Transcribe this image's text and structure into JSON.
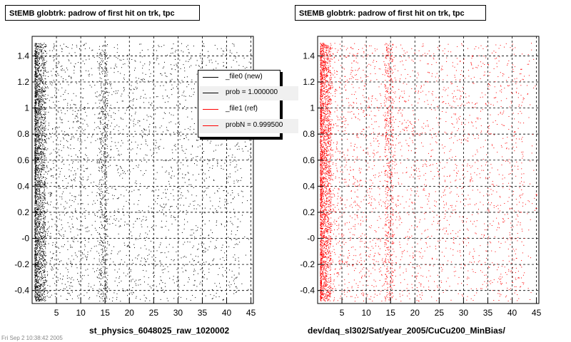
{
  "chart_data": [
    {
      "type": "scatter",
      "title": "StEMB globtrk: padrow of first hit on trk, tpc",
      "xlabel": "st_physics_6048025_raw_1020002",
      "ylabel": "",
      "xlim": [
        0,
        45.5
      ],
      "ylim": [
        -0.5,
        1.55
      ],
      "x_ticks": [
        "5",
        "10",
        "15",
        "20",
        "25",
        "30",
        "35",
        "40",
        "45"
      ],
      "y_ticks": [
        "-0.4",
        "-0.2",
        "-0",
        "0.2",
        "0.4",
        "0.6",
        "0.8",
        "1",
        "1.2",
        "1.4"
      ],
      "grid": true,
      "color": "#000000",
      "series": [
        {
          "points_desc": "",
          "x_range": [
            0.5,
            45
          ],
          "y_range": [
            -0.5,
            1.5
          ],
          "dense_x": [
            [
              0.5,
              2.5
            ],
            [
              13.5,
              15.5
            ]
          ]
        }
      ],
      "legend": {
        "placement": "top-right",
        "entries": [
          {
            "label": "_file0 (new)",
            "color": "#000000"
          },
          {
            "label": "prob = 1.000000",
            "color": "#000000"
          },
          {
            "label": "_file1 (ref)",
            "color": "#ff0000"
          },
          {
            "label": "probN = 0.999500",
            "color": "#ff0000"
          }
        ]
      }
    },
    {
      "type": "scatter",
      "title": "StEMB globtrk: padrow of first hit on trk, tpc",
      "xlabel": "dev/daq_sl302/Sat/year_2005/CuCu200_MinBias/",
      "ylabel": "",
      "xlim": [
        0,
        45.5
      ],
      "ylim": [
        -0.5,
        1.55
      ],
      "x_ticks": [
        "5",
        "10",
        "15",
        "20",
        "25",
        "30",
        "35",
        "40",
        "45"
      ],
      "y_ticks": [
        "-0.4",
        "-0.2",
        "-0",
        "0.2",
        "0.4",
        "0.6",
        "0.8",
        "1",
        "1.2",
        "1.4"
      ],
      "grid": true,
      "color": "#ff0000",
      "series": [
        {
          "points_desc": "",
          "x_range": [
            0.5,
            45
          ],
          "y_range": [
            -0.5,
            1.5
          ],
          "dense_x": [
            [
              0.5,
              2.5
            ],
            [
              13.5,
              15.5
            ]
          ]
        }
      ]
    }
  ],
  "footer": "Fri Sep  2 10:38:42 2005"
}
